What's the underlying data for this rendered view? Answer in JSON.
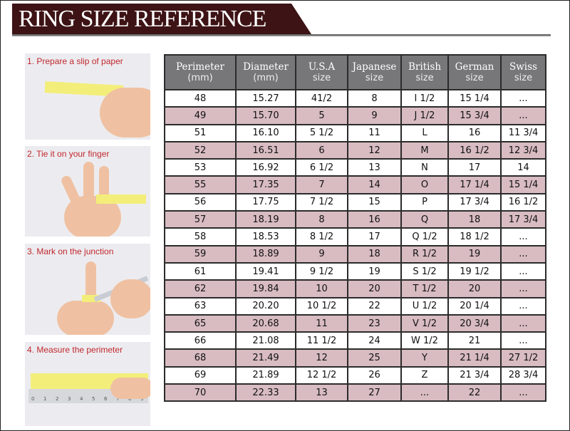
{
  "title": "RING SIZE REFERENCE",
  "colors": {
    "banner": "#3d1315",
    "header": "#77777a",
    "alt_row": "#d8bcc2",
    "step_text": "#c0272d",
    "paper": "#f3ee7a"
  },
  "steps": [
    {
      "label": "1. Prepare a slip of paper"
    },
    {
      "label": "2. Tie it on your finger"
    },
    {
      "label": "3. Mark on the junction"
    },
    {
      "label": "4. Measure the perimeter"
    }
  ],
  "ruler_ticks": [
    "0",
    "1",
    "2",
    "3",
    "4",
    "5",
    "6",
    "7",
    "8",
    "9"
  ],
  "table": {
    "headers": [
      {
        "title": "Perimeter",
        "sub": "(mm)"
      },
      {
        "title": "Diameter",
        "sub": "(mm)"
      },
      {
        "title": "U.S.A",
        "sub": "size"
      },
      {
        "title": "Japanese",
        "sub": "size"
      },
      {
        "title": "British",
        "sub": "size"
      },
      {
        "title": "German",
        "sub": "size"
      },
      {
        "title": "Swiss",
        "sub": "size"
      }
    ],
    "rows": [
      [
        "48",
        "15.27",
        "41/2",
        "8",
        "I 1/2",
        "15 1/4",
        "..."
      ],
      [
        "49",
        "15.70",
        "5",
        "9",
        "J 1/2",
        "15 3/4",
        "..."
      ],
      [
        "51",
        "16.10",
        "5 1/2",
        "11",
        "L",
        "16",
        "11 3/4"
      ],
      [
        "52",
        "16.51",
        "6",
        "12",
        "M",
        "16 1/2",
        "12 3/4"
      ],
      [
        "53",
        "16.92",
        "6 1/2",
        "13",
        "N",
        "17",
        "14"
      ],
      [
        "55",
        "17.35",
        "7",
        "14",
        "O",
        "17 1/4",
        "15 1/4"
      ],
      [
        "56",
        "17.75",
        "7 1/2",
        "15",
        "P",
        "17 3/4",
        "16 1/2"
      ],
      [
        "57",
        "18.19",
        "8",
        "16",
        "Q",
        "18",
        "17 3/4"
      ],
      [
        "58",
        "18.53",
        "8 1/2",
        "17",
        "Q  1/2",
        "18 1/2",
        "..."
      ],
      [
        "59",
        "18.89",
        "9",
        "18",
        "R 1/2",
        "19",
        "..."
      ],
      [
        "61",
        "19.41",
        "9 1/2",
        "19",
        "S 1/2",
        "19 1/2",
        "..."
      ],
      [
        "62",
        "19.84",
        "10",
        "20",
        "T 1/2",
        "20",
        "..."
      ],
      [
        "63",
        "20.20",
        "10 1/2",
        "22",
        "U 1/2",
        "20 1/4",
        "..."
      ],
      [
        "65",
        "20.68",
        "11",
        "23",
        "V 1/2",
        "20 3/4",
        "..."
      ],
      [
        "66",
        "21.08",
        "11 1/2",
        "24",
        "W 1/2",
        "21",
        "..."
      ],
      [
        "68",
        "21.49",
        "12",
        "25",
        "Y",
        "21 1/4",
        "27 1/2"
      ],
      [
        "69",
        "21.89",
        "12 1/2",
        "26",
        "Z",
        "21 3/4",
        "28 3/4"
      ],
      [
        "70",
        "22.33",
        "13",
        "27",
        "...",
        "22",
        "..."
      ]
    ]
  }
}
